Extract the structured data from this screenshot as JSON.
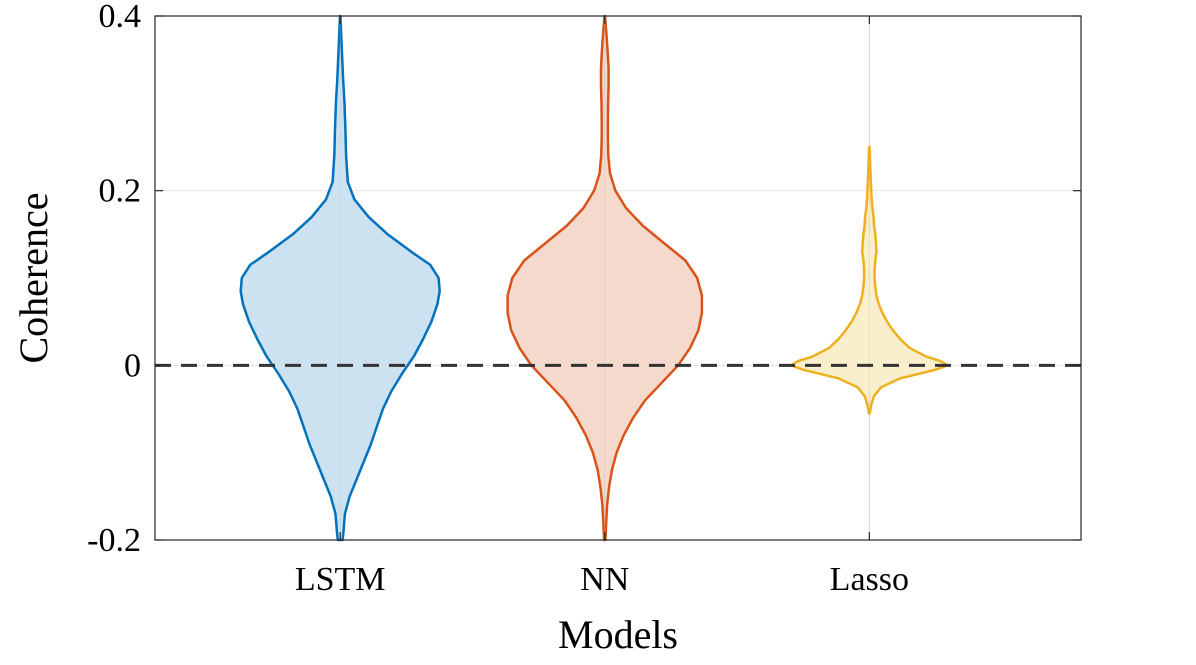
{
  "chart_data": {
    "type": "violin",
    "xlabel": "Models",
    "ylabel": "Coherence",
    "ylim": [
      -0.2,
      0.4
    ],
    "yticks": [
      -0.2,
      0,
      0.2,
      0.4
    ],
    "ytick_labels": [
      "-0.2",
      "0",
      "0.2",
      "0.4"
    ],
    "xlim": [
      0.3,
      3.8
    ],
    "grid": true,
    "reference_line": {
      "y": 0,
      "style": "dashed",
      "color": "#333333"
    },
    "series": [
      {
        "name": "LSTM",
        "x": 1,
        "color": "#0072BD",
        "fill": "#CDE2F1",
        "profile": [
          [
            -0.2,
            0.01
          ],
          [
            -0.19,
            0.014
          ],
          [
            -0.17,
            0.02
          ],
          [
            -0.15,
            0.04
          ],
          [
            -0.13,
            0.07
          ],
          [
            -0.11,
            0.1
          ],
          [
            -0.09,
            0.13
          ],
          [
            -0.07,
            0.155
          ],
          [
            -0.05,
            0.18
          ],
          [
            -0.03,
            0.215
          ],
          [
            -0.01,
            0.26
          ],
          [
            0.01,
            0.31
          ],
          [
            0.03,
            0.35
          ],
          [
            0.05,
            0.385
          ],
          [
            0.07,
            0.41
          ],
          [
            0.085,
            0.42
          ],
          [
            0.1,
            0.415
          ],
          [
            0.115,
            0.38
          ],
          [
            0.13,
            0.3
          ],
          [
            0.15,
            0.2
          ],
          [
            0.17,
            0.12
          ],
          [
            0.19,
            0.06
          ],
          [
            0.21,
            0.032
          ],
          [
            0.24,
            0.025
          ],
          [
            0.27,
            0.022
          ],
          [
            0.3,
            0.018
          ],
          [
            0.33,
            0.012
          ],
          [
            0.36,
            0.007
          ],
          [
            0.4,
            0.001
          ]
        ]
      },
      {
        "name": "NN",
        "x": 2,
        "color": "#D95319",
        "fill": "#F6D9CD",
        "profile": [
          [
            -0.2,
            0.003
          ],
          [
            -0.18,
            0.006
          ],
          [
            -0.16,
            0.01
          ],
          [
            -0.14,
            0.018
          ],
          [
            -0.12,
            0.03
          ],
          [
            -0.1,
            0.05
          ],
          [
            -0.08,
            0.08
          ],
          [
            -0.06,
            0.12
          ],
          [
            -0.04,
            0.17
          ],
          [
            -0.02,
            0.24
          ],
          [
            0.0,
            0.31
          ],
          [
            0.02,
            0.36
          ],
          [
            0.04,
            0.395
          ],
          [
            0.06,
            0.41
          ],
          [
            0.08,
            0.41
          ],
          [
            0.1,
            0.39
          ],
          [
            0.12,
            0.34
          ],
          [
            0.14,
            0.25
          ],
          [
            0.16,
            0.16
          ],
          [
            0.18,
            0.09
          ],
          [
            0.2,
            0.045
          ],
          [
            0.22,
            0.022
          ],
          [
            0.24,
            0.015
          ],
          [
            0.26,
            0.013
          ],
          [
            0.28,
            0.013
          ],
          [
            0.3,
            0.014
          ],
          [
            0.32,
            0.016
          ],
          [
            0.34,
            0.016
          ],
          [
            0.36,
            0.012
          ],
          [
            0.38,
            0.007
          ],
          [
            0.4,
            0.001
          ]
        ]
      },
      {
        "name": "Lasso",
        "x": 3,
        "color": "#EDB120",
        "fill": "#FAEFCC",
        "profile": [
          [
            -0.055,
            0.002
          ],
          [
            -0.045,
            0.008
          ],
          [
            -0.035,
            0.02
          ],
          [
            -0.025,
            0.05
          ],
          [
            -0.015,
            0.13
          ],
          [
            -0.005,
            0.28
          ],
          [
            0.0,
            0.33
          ],
          [
            0.005,
            0.3
          ],
          [
            0.01,
            0.24
          ],
          [
            0.02,
            0.17
          ],
          [
            0.03,
            0.13
          ],
          [
            0.04,
            0.1
          ],
          [
            0.05,
            0.075
          ],
          [
            0.06,
            0.055
          ],
          [
            0.07,
            0.04
          ],
          [
            0.08,
            0.03
          ],
          [
            0.09,
            0.025
          ],
          [
            0.1,
            0.022
          ],
          [
            0.11,
            0.022
          ],
          [
            0.12,
            0.025
          ],
          [
            0.13,
            0.03
          ],
          [
            0.14,
            0.028
          ],
          [
            0.15,
            0.025
          ],
          [
            0.16,
            0.02
          ],
          [
            0.17,
            0.018
          ],
          [
            0.18,
            0.013
          ],
          [
            0.19,
            0.01
          ],
          [
            0.2,
            0.008
          ],
          [
            0.22,
            0.005
          ],
          [
            0.25,
            0.001
          ]
        ]
      }
    ]
  }
}
